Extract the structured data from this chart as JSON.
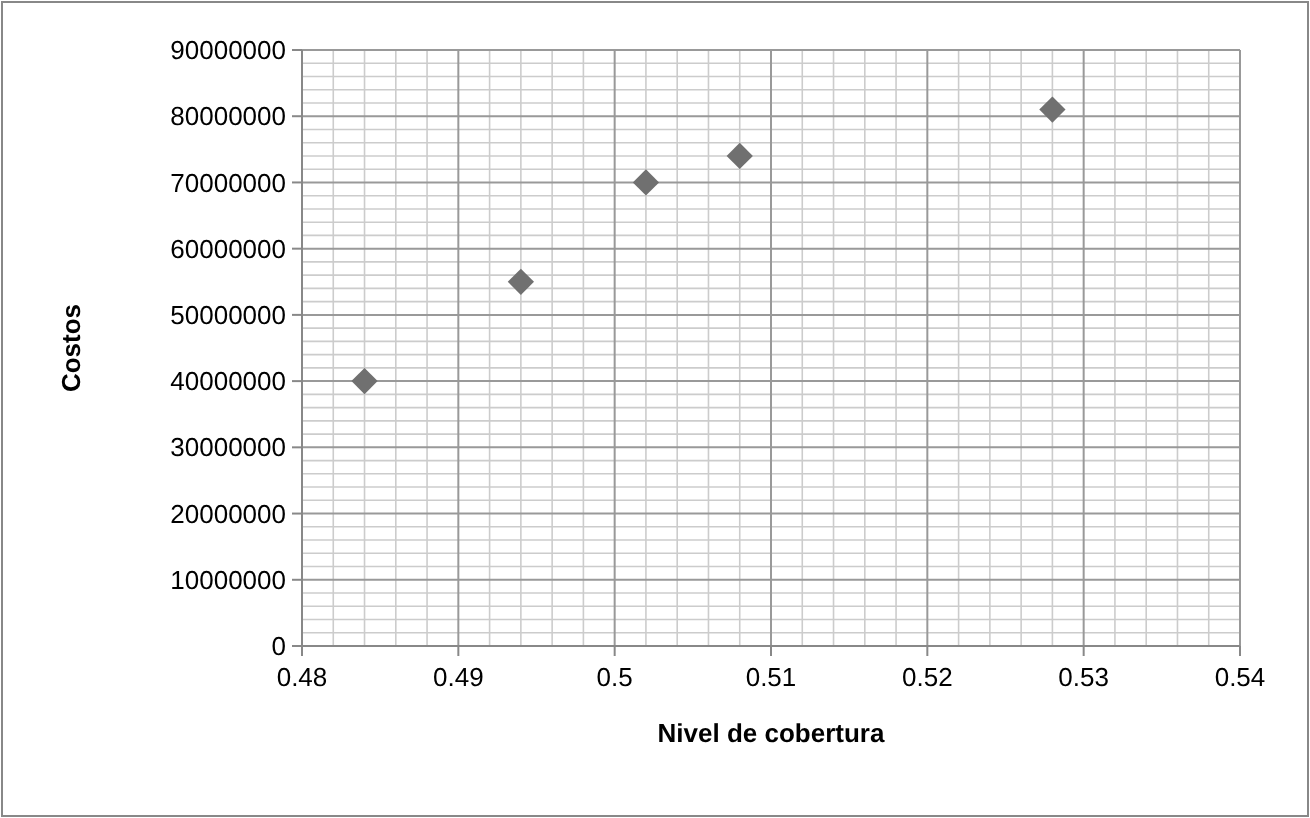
{
  "chart_data": {
    "type": "scatter",
    "xlabel": "Nivel de cobertura",
    "ylabel": "Costos",
    "x": [
      0.484,
      0.494,
      0.502,
      0.508,
      0.528
    ],
    "values": [
      40000000,
      55000000,
      70000000,
      74000000,
      81000000
    ],
    "color": "#707070",
    "marker": "diamond",
    "grid": true,
    "xlim": [
      0.48,
      0.54
    ],
    "xticks": [
      0.48,
      0.49,
      0.5,
      0.51,
      0.52,
      0.53,
      0.54
    ],
    "ylim": [
      0,
      90000000
    ],
    "yticks": [
      0,
      10000000,
      20000000,
      30000000,
      40000000,
      50000000,
      60000000,
      70000000,
      80000000,
      90000000
    ]
  }
}
